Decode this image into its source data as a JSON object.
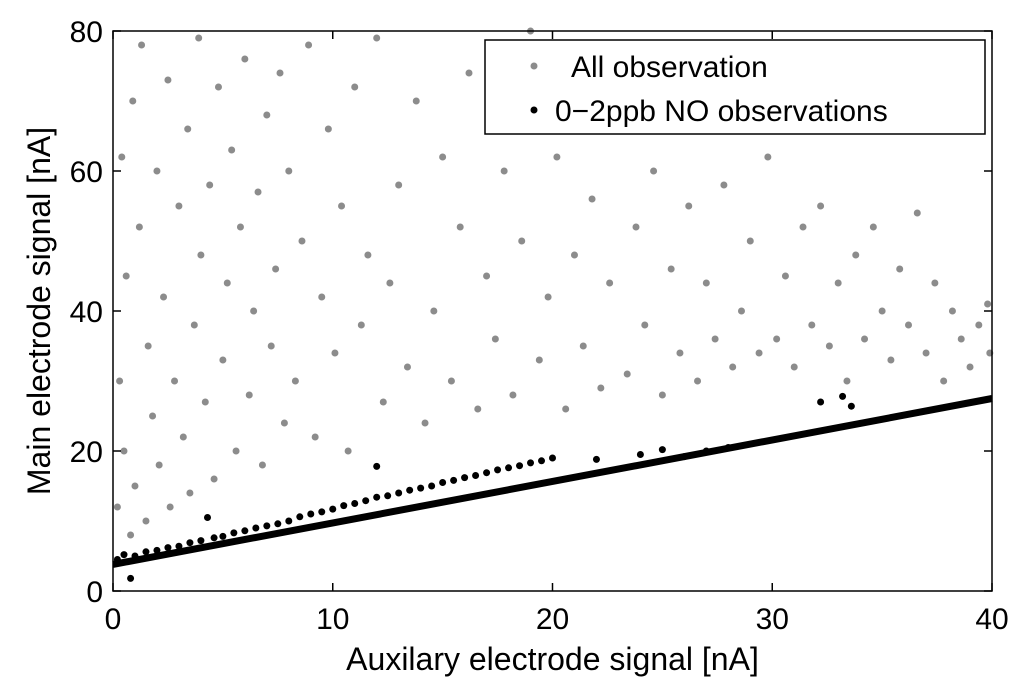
{
  "chart_data": {
    "type": "scatter",
    "title": "",
    "xlabel": "Auxilary electrode signal [nA]",
    "ylabel": "Main electrode signal [nA]",
    "xlim": [
      0,
      40
    ],
    "ylim": [
      0,
      80
    ],
    "xticks": [
      0,
      10,
      20,
      30,
      40
    ],
    "yticks": [
      0,
      20,
      40,
      60,
      80
    ],
    "xtick_labels": [
      "0",
      "10",
      "20",
      "30",
      "40"
    ],
    "ytick_labels": [
      "0",
      "20",
      "40",
      "60",
      "80"
    ],
    "grid": false,
    "legend_position": "top-right",
    "colors": {
      "all": "#8c8c8c",
      "no": "#000000",
      "fit": "#000000"
    },
    "series": [
      {
        "name": "All observation",
        "color": "#8c8c8c",
        "note": "dense cloud of thousands of points; representative sample listed",
        "points": [
          [
            0.2,
            12
          ],
          [
            0.3,
            30
          ],
          [
            0.4,
            62
          ],
          [
            0.5,
            20
          ],
          [
            0.6,
            45
          ],
          [
            0.8,
            8
          ],
          [
            0.9,
            70
          ],
          [
            1.0,
            15
          ],
          [
            1.2,
            52
          ],
          [
            1.3,
            78
          ],
          [
            1.5,
            10
          ],
          [
            1.6,
            35
          ],
          [
            1.8,
            25
          ],
          [
            2.0,
            60
          ],
          [
            2.1,
            18
          ],
          [
            2.3,
            42
          ],
          [
            2.5,
            73
          ],
          [
            2.6,
            12
          ],
          [
            2.8,
            30
          ],
          [
            3.0,
            55
          ],
          [
            3.2,
            22
          ],
          [
            3.4,
            66
          ],
          [
            3.5,
            14
          ],
          [
            3.7,
            38
          ],
          [
            3.9,
            79
          ],
          [
            4.0,
            48
          ],
          [
            4.2,
            27
          ],
          [
            4.4,
            58
          ],
          [
            4.6,
            16
          ],
          [
            4.8,
            72
          ],
          [
            5.0,
            33
          ],
          [
            5.2,
            44
          ],
          [
            5.4,
            63
          ],
          [
            5.6,
            20
          ],
          [
            5.8,
            52
          ],
          [
            6.0,
            76
          ],
          [
            6.2,
            28
          ],
          [
            6.4,
            40
          ],
          [
            6.6,
            57
          ],
          [
            6.8,
            18
          ],
          [
            7.0,
            68
          ],
          [
            7.2,
            35
          ],
          [
            7.4,
            46
          ],
          [
            7.6,
            74
          ],
          [
            7.8,
            24
          ],
          [
            8.0,
            60
          ],
          [
            8.3,
            30
          ],
          [
            8.6,
            50
          ],
          [
            8.9,
            78
          ],
          [
            9.2,
            22
          ],
          [
            9.5,
            42
          ],
          [
            9.8,
            66
          ],
          [
            10.1,
            34
          ],
          [
            10.4,
            55
          ],
          [
            10.7,
            20
          ],
          [
            11.0,
            72
          ],
          [
            11.3,
            38
          ],
          [
            11.6,
            48
          ],
          [
            12.0,
            79
          ],
          [
            12.3,
            27
          ],
          [
            12.6,
            44
          ],
          [
            13.0,
            58
          ],
          [
            13.4,
            32
          ],
          [
            13.8,
            70
          ],
          [
            14.2,
            24
          ],
          [
            14.6,
            40
          ],
          [
            15.0,
            62
          ],
          [
            15.4,
            30
          ],
          [
            15.8,
            52
          ],
          [
            16.2,
            74
          ],
          [
            16.6,
            26
          ],
          [
            17.0,
            45
          ],
          [
            17.4,
            36
          ],
          [
            17.8,
            60
          ],
          [
            18.2,
            28
          ],
          [
            18.6,
            50
          ],
          [
            19.0,
            80
          ],
          [
            19.4,
            33
          ],
          [
            19.8,
            42
          ],
          [
            20.2,
            62
          ],
          [
            20.6,
            26
          ],
          [
            21.0,
            48
          ],
          [
            21.4,
            35
          ],
          [
            21.8,
            56
          ],
          [
            22.2,
            29
          ],
          [
            22.6,
            44
          ],
          [
            23.0,
            66
          ],
          [
            23.4,
            31
          ],
          [
            23.8,
            52
          ],
          [
            24.2,
            38
          ],
          [
            24.6,
            60
          ],
          [
            25.0,
            28
          ],
          [
            25.4,
            46
          ],
          [
            25.8,
            34
          ],
          [
            26.2,
            55
          ],
          [
            26.6,
            30
          ],
          [
            27.0,
            44
          ],
          [
            27.4,
            36
          ],
          [
            27.8,
            58
          ],
          [
            28.2,
            32
          ],
          [
            28.6,
            40
          ],
          [
            29.0,
            50
          ],
          [
            29.4,
            34
          ],
          [
            29.8,
            62
          ],
          [
            30.2,
            36
          ],
          [
            30.6,
            45
          ],
          [
            31.0,
            32
          ],
          [
            31.4,
            52
          ],
          [
            31.8,
            38
          ],
          [
            32.2,
            55
          ],
          [
            32.6,
            35
          ],
          [
            33.0,
            44
          ],
          [
            33.4,
            30
          ],
          [
            33.8,
            48
          ],
          [
            34.2,
            36
          ],
          [
            34.6,
            52
          ],
          [
            35.0,
            40
          ],
          [
            35.4,
            33
          ],
          [
            35.8,
            46
          ],
          [
            36.2,
            38
          ],
          [
            36.6,
            54
          ],
          [
            37.0,
            34
          ],
          [
            37.4,
            44
          ],
          [
            37.8,
            30
          ],
          [
            38.2,
            40
          ],
          [
            38.6,
            36
          ],
          [
            39.0,
            32
          ],
          [
            39.4,
            38
          ],
          [
            39.8,
            41
          ],
          [
            39.9,
            34
          ]
        ]
      },
      {
        "name": "0−2ppb NO observations",
        "color": "#000000",
        "note": "points clustered along the lower edge of the cloud; representative sample listed",
        "points": [
          [
            0.2,
            4.5
          ],
          [
            0.5,
            5.2
          ],
          [
            0.8,
            1.8
          ],
          [
            1.0,
            5.0
          ],
          [
            1.5,
            5.6
          ],
          [
            2.0,
            5.8
          ],
          [
            2.5,
            6.2
          ],
          [
            3.0,
            6.4
          ],
          [
            3.5,
            6.9
          ],
          [
            4.0,
            7.2
          ],
          [
            4.3,
            10.5
          ],
          [
            4.6,
            7.6
          ],
          [
            5.0,
            7.8
          ],
          [
            5.5,
            8.3
          ],
          [
            6.0,
            8.6
          ],
          [
            6.5,
            9.0
          ],
          [
            7.0,
            9.3
          ],
          [
            7.5,
            9.6
          ],
          [
            8.0,
            10.0
          ],
          [
            8.5,
            10.6
          ],
          [
            9.0,
            11.0
          ],
          [
            9.5,
            11.3
          ],
          [
            10.0,
            11.7
          ],
          [
            10.5,
            12.2
          ],
          [
            11.0,
            12.5
          ],
          [
            11.5,
            12.9
          ],
          [
            12.0,
            13.4
          ],
          [
            12.0,
            17.8
          ],
          [
            12.5,
            13.6
          ],
          [
            13.0,
            14.0
          ],
          [
            13.5,
            14.4
          ],
          [
            14.0,
            14.7
          ],
          [
            14.5,
            15.0
          ],
          [
            15.0,
            15.5
          ],
          [
            15.5,
            15.8
          ],
          [
            16.0,
            16.2
          ],
          [
            16.5,
            16.5
          ],
          [
            17.0,
            16.9
          ],
          [
            17.5,
            17.3
          ],
          [
            18.0,
            17.6
          ],
          [
            18.5,
            17.9
          ],
          [
            19.0,
            18.3
          ],
          [
            19.5,
            18.6
          ],
          [
            20.0,
            19.0
          ],
          [
            22.0,
            18.8
          ],
          [
            24.0,
            19.5
          ],
          [
            25.0,
            20.2
          ],
          [
            26.0,
            19.2
          ],
          [
            27.0,
            20.0
          ],
          [
            28.0,
            20.5
          ],
          [
            32.2,
            27.0
          ],
          [
            33.2,
            27.8
          ],
          [
            33.6,
            26.4
          ]
        ]
      },
      {
        "name": "fit line",
        "color": "#000000",
        "type": "line",
        "x": [
          0,
          40
        ],
        "y": [
          3.8,
          27.5
        ]
      }
    ]
  }
}
